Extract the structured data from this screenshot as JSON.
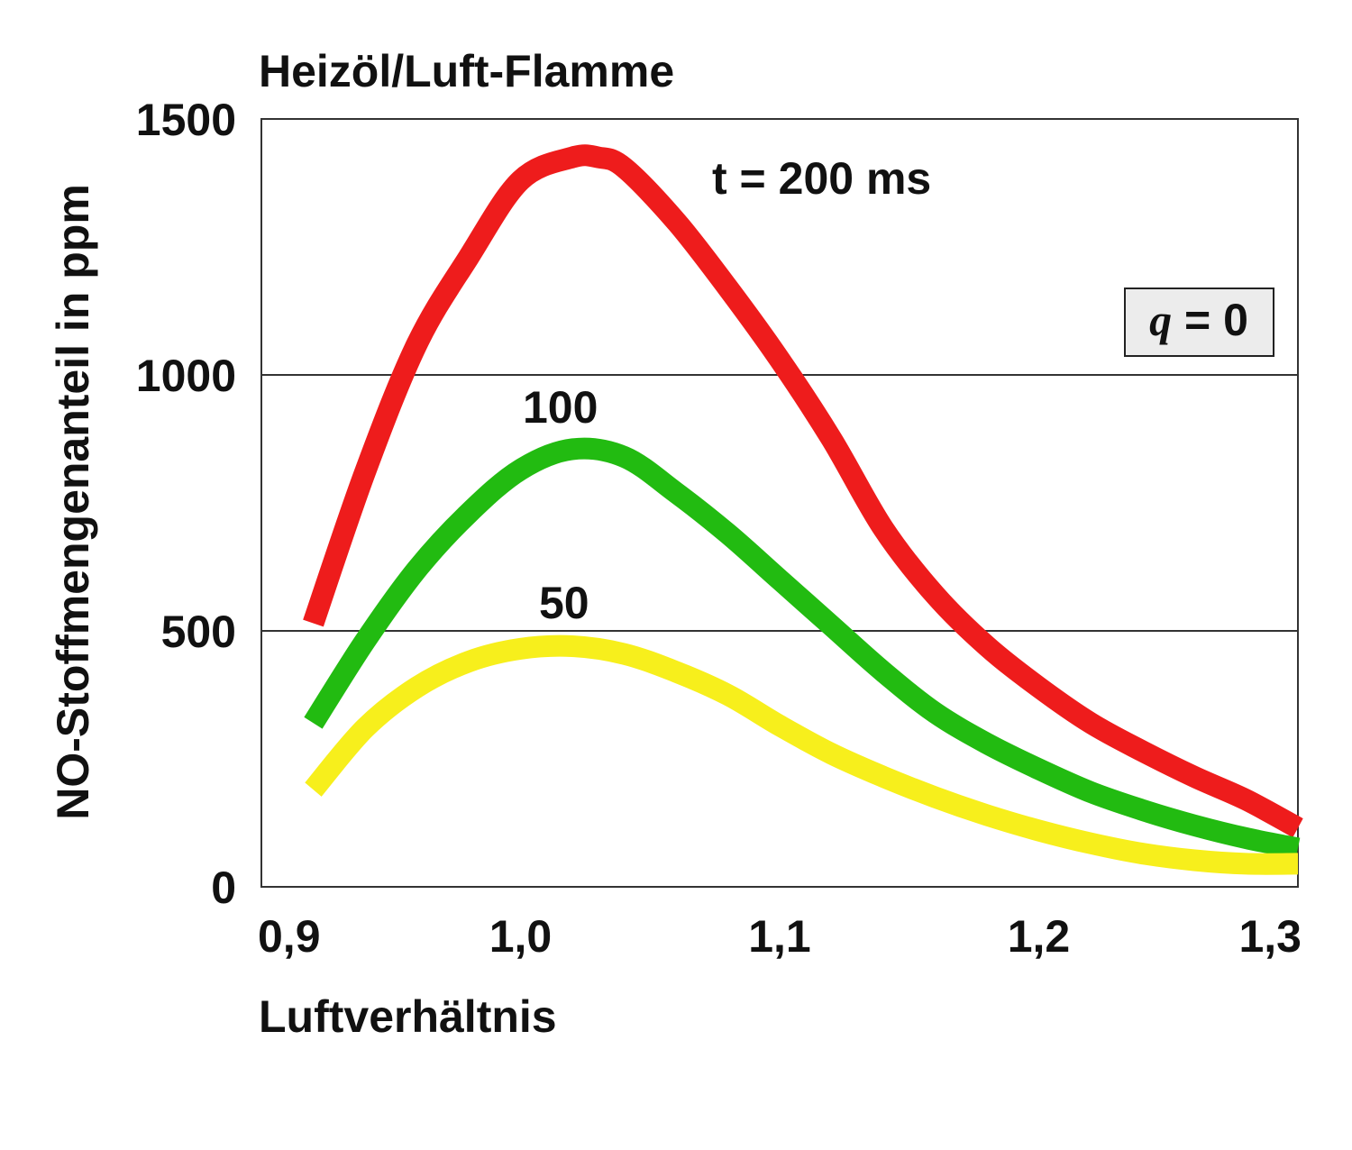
{
  "chart_data": {
    "type": "line",
    "title": "Heizöl/Luft-Flamme",
    "xlabel": "Luftverhältnis",
    "ylabel": "NO-Stoffmengenanteil in ppm",
    "xlim": [
      0.9,
      1.3
    ],
    "ylim": [
      0,
      1500
    ],
    "x_ticks": [
      0.9,
      1.0,
      1.1,
      1.2,
      1.3
    ],
    "x_tick_labels": [
      "0,9",
      "1,0",
      "1,1",
      "1,2",
      "1,3"
    ],
    "y_ticks": [
      0,
      500,
      1000,
      1500
    ],
    "y_tick_labels": [
      "0",
      "500",
      "1000",
      "1500"
    ],
    "gridlines_y": [
      500,
      1000
    ],
    "parameter_box": {
      "label": "q = 0",
      "italic_part": "q",
      "rest": " = 0"
    },
    "series": [
      {
        "name": "t = 200 ms",
        "label": "t = 200 ms",
        "color": "#ee1c1c",
        "x": [
          0.92,
          0.94,
          0.96,
          0.98,
          1.0,
          1.02,
          1.03,
          1.04,
          1.06,
          1.08,
          1.1,
          1.12,
          1.14,
          1.16,
          1.18,
          1.2,
          1.22,
          1.24,
          1.26,
          1.28,
          1.3
        ],
        "y": [
          515,
          810,
          1060,
          1230,
          1380,
          1425,
          1425,
          1405,
          1300,
          1170,
          1030,
          875,
          700,
          570,
          470,
          390,
          320,
          265,
          215,
          170,
          115
        ]
      },
      {
        "name": "100",
        "label": "100",
        "color": "#22bb11",
        "x": [
          0.92,
          0.94,
          0.96,
          0.98,
          1.0,
          1.02,
          1.04,
          1.06,
          1.08,
          1.1,
          1.12,
          1.14,
          1.16,
          1.18,
          1.2,
          1.22,
          1.24,
          1.26,
          1.28,
          1.3
        ],
        "y": [
          320,
          480,
          620,
          730,
          815,
          855,
          840,
          770,
          690,
          600,
          510,
          420,
          340,
          280,
          230,
          185,
          150,
          120,
          95,
          75
        ]
      },
      {
        "name": "50",
        "label": "50",
        "color": "#f7ef1c",
        "x": [
          0.92,
          0.94,
          0.96,
          0.98,
          1.0,
          1.02,
          1.04,
          1.06,
          1.08,
          1.1,
          1.12,
          1.14,
          1.16,
          1.18,
          1.2,
          1.22,
          1.24,
          1.26,
          1.28,
          1.3
        ],
        "y": [
          190,
          310,
          390,
          440,
          465,
          470,
          455,
          420,
          375,
          315,
          260,
          215,
          175,
          140,
          110,
          85,
          65,
          52,
          45,
          45
        ]
      }
    ]
  }
}
